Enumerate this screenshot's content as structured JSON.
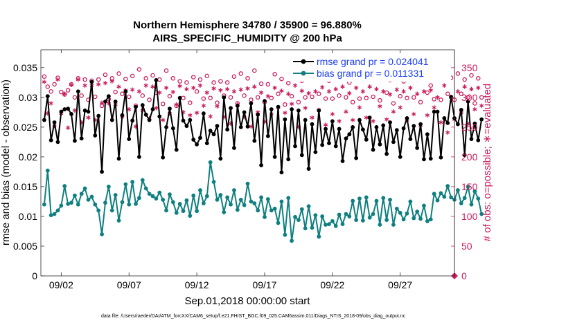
{
  "chart_data": {
    "type": "line",
    "title": "Northern Hemisphere 34780 / 35900 = 96.880%",
    "subtitle": "AIRS_SPECIFIC_HUMIDITY @ 200 hPa",
    "xlabel": "Sep.01,2018 00:00:00 start",
    "ylabel": "rmse and bias (model - observation)",
    "ylabel2": "# of obs: o=possible; ∗=evaluated",
    "footnote": "data file: /Users/raeder/DAI/ATM_forcXX/CAM6_setup/f.e21.FHIST_BGC.f09_025.CAM6assim.011/Diags_NTrS_2018-09/obs_diag_output.nc",
    "xlim": [
      0.5,
      31.0
    ],
    "ylim": [
      0,
      0.038
    ],
    "ylim2": [
      0,
      380
    ],
    "xticks": [
      2,
      7,
      12,
      17,
      22,
      27
    ],
    "xtick_labels": [
      "09/02",
      "09/07",
      "09/12",
      "09/17",
      "09/22",
      "09/27"
    ],
    "yticks": [
      0,
      0.005,
      0.01,
      0.015,
      0.02,
      0.025,
      0.03,
      0.035
    ],
    "ytick_labels": [
      "0",
      "0.005",
      "0.01",
      "0.015",
      "0.02",
      "0.025",
      "0.03",
      "0.035"
    ],
    "yticks2": [
      0,
      50,
      100,
      150,
      200,
      250,
      300,
      350
    ],
    "ytick2_labels": [
      "0",
      "50",
      "100",
      "150",
      "200",
      "250",
      "300",
      "350"
    ],
    "legend": [
      "rmse grand pr = 0.024041",
      "bias grand pr = 0.011331"
    ],
    "legend_position": "top-right",
    "colors": {
      "rmse": "#000000",
      "bias": "#0f7f7f",
      "obs": "#cc1e5e",
      "legend_text": "#1a3cff"
    },
    "x_start": 0.75,
    "x_step": 0.25,
    "series": [
      {
        "name": "rmse",
        "values": [
          0.0262,
          0.0302,
          0.0228,
          0.0258,
          0.0225,
          0.0276,
          0.028,
          0.0281,
          0.0272,
          0.0227,
          0.031,
          0.0231,
          0.0278,
          0.0276,
          0.0326,
          0.0236,
          0.0269,
          0.0175,
          0.0293,
          0.0302,
          0.0262,
          0.0293,
          0.0197,
          0.027,
          0.031,
          0.023,
          0.0261,
          0.0284,
          0.02,
          0.0287,
          0.0271,
          0.0262,
          0.028,
          0.0329,
          0.0268,
          0.0199,
          0.025,
          0.0281,
          0.0248,
          0.0212,
          0.0299,
          0.0261,
          0.0252,
          0.0262,
          0.0229,
          0.0221,
          0.0232,
          0.0273,
          0.0223,
          0.0244,
          0.0238,
          0.0252,
          0.0197,
          0.03,
          0.0246,
          0.0282,
          0.0215,
          0.0286,
          0.025,
          0.0275,
          0.0251,
          0.029,
          0.0227,
          0.0271,
          0.0186,
          0.0294,
          0.0235,
          0.028,
          0.02,
          0.0284,
          0.0174,
          0.0263,
          0.0196,
          0.028,
          0.0218,
          0.0278,
          0.0203,
          0.0262,
          0.018,
          0.0255,
          0.0208,
          0.0278,
          0.022,
          0.0247,
          0.0223,
          0.026,
          0.0218,
          0.0247,
          0.0193,
          0.0231,
          0.0238,
          0.025,
          0.0198,
          0.0262,
          0.0246,
          0.0229,
          0.0266,
          0.0212,
          0.025,
          0.0221,
          0.0253,
          0.0205,
          0.0258,
          0.0225,
          0.0245,
          0.02,
          0.0248,
          0.0265,
          0.023,
          0.0252,
          0.0215,
          0.0255,
          0.0196,
          0.0238,
          0.0197,
          0.0276,
          0.0276,
          0.0199,
          0.0265,
          0.0257,
          0.0301,
          0.0265,
          0.0255,
          0.0279,
          0.0203,
          0.0293,
          0.023,
          0.0256,
          0.0228,
          0.0263
        ]
      },
      {
        "name": "bias",
        "values": [
          0.012,
          0.0177,
          0.0102,
          0.0104,
          0.011,
          0.0118,
          0.0151,
          0.0121,
          0.0123,
          0.0135,
          0.012,
          0.0138,
          0.0147,
          0.0128,
          0.0133,
          0.012,
          0.011,
          0.007,
          0.0123,
          0.015,
          0.011,
          0.0136,
          0.0093,
          0.0124,
          0.0154,
          0.012,
          0.0158,
          0.0121,
          0.0131,
          0.0161,
          0.0147,
          0.0138,
          0.0134,
          0.013,
          0.014,
          0.0128,
          0.011,
          0.0137,
          0.0124,
          0.0106,
          0.0121,
          0.0109,
          0.0127,
          0.0101,
          0.0135,
          0.0109,
          0.0144,
          0.0122,
          0.0134,
          0.0191,
          0.0158,
          0.0128,
          0.0136,
          0.0107,
          0.0132,
          0.012,
          0.0144,
          0.0111,
          0.0128,
          0.0119,
          0.0155,
          0.0125,
          0.0122,
          0.011,
          0.0132,
          0.0099,
          0.0129,
          0.011,
          0.0113,
          0.0089,
          0.0125,
          0.0069,
          0.0131,
          0.0059,
          0.0099,
          0.0094,
          0.0112,
          0.008,
          0.0117,
          0.0081,
          0.0102,
          0.0066,
          0.01,
          0.0086,
          0.0087,
          0.0092,
          0.0084,
          0.0103,
          0.0087,
          0.0104,
          0.01,
          0.0126,
          0.0094,
          0.013,
          0.0093,
          0.0132,
          0.0098,
          0.0104,
          0.0126,
          0.0086,
          0.0131,
          0.0094,
          0.0128,
          0.0086,
          0.0113,
          0.0106,
          0.0095,
          0.0105,
          0.0125,
          0.0097,
          0.0108,
          0.0096,
          0.0118,
          0.0092,
          0.0095,
          0.0138,
          0.0127,
          0.0139,
          0.0133,
          0.0151,
          0.0132,
          0.0128,
          0.0144,
          0.0122,
          0.0131,
          0.015,
          0.012,
          0.0142,
          0.013,
          0.0104
        ]
      },
      {
        "name": "obs possible",
        "values": [
          335,
          318,
          310,
          322,
          333,
          309,
          305,
          312,
          322,
          300,
          332,
          303,
          330,
          296,
          328,
          301,
          330,
          286,
          338,
          297,
          332,
          309,
          340,
          306,
          331,
          301,
          336,
          286,
          347,
          303,
          332,
          296,
          337,
          308,
          330,
          289,
          345,
          302,
          332,
          286,
          327,
          299,
          325,
          291,
          334,
          310,
          330,
          298,
          336,
          299,
          325,
          291,
          327,
          303,
          325,
          300,
          335,
          290,
          340,
          303,
          332,
          296,
          345,
          300,
          323,
          292,
          322,
          299,
          339,
          306,
          331,
          288,
          324,
          302,
          336,
          292,
          328,
          300,
          340,
          301,
          331,
          306,
          334,
          298,
          328,
          298,
          336,
          303,
          332,
          300,
          325,
          292,
          334,
          298,
          330,
          299,
          343,
          301,
          335,
          295,
          337,
          308,
          329,
          290,
          343,
          302,
          327,
          299,
          343,
          300,
          330,
          292,
          338,
          308,
          320,
          297,
          335,
          296,
          342,
          306,
          333,
          296,
          340,
          306,
          330,
          300,
          337,
          290,
          332,
          300
        ]
      },
      {
        "name": "obs evaluated",
        "values": [
          326,
          273,
          290,
          252,
          330,
          273,
          306,
          249,
          321,
          278,
          330,
          258,
          320,
          266,
          320,
          262,
          322,
          291,
          324,
          290,
          327,
          288,
          318,
          267,
          312,
          280,
          313,
          251,
          310,
          278,
          320,
          265,
          318,
          282,
          308,
          262,
          316,
          273,
          309,
          288,
          319,
          275,
          314,
          270,
          316,
          274,
          320,
          286,
          308,
          268,
          315,
          285,
          312,
          267,
          314,
          256,
          310,
          288,
          313,
          267,
          315,
          251,
          318,
          275,
          308,
          259,
          302,
          272,
          316,
          283,
          311,
          274,
          306,
          289,
          320,
          250,
          311,
          282,
          307,
          266,
          310,
          279,
          317,
          254,
          310,
          272,
          314,
          260,
          318,
          276,
          307,
          262,
          316,
          283,
          310,
          266,
          318,
          260,
          314,
          285,
          310,
          263,
          305,
          276,
          313,
          283,
          310,
          262,
          316,
          272,
          306,
          253,
          310,
          270,
          312,
          283,
          300,
          258,
          320,
          241,
          300,
          263,
          310,
          274,
          318,
          256,
          314,
          280,
          316,
          286
        ]
      }
    ]
  }
}
